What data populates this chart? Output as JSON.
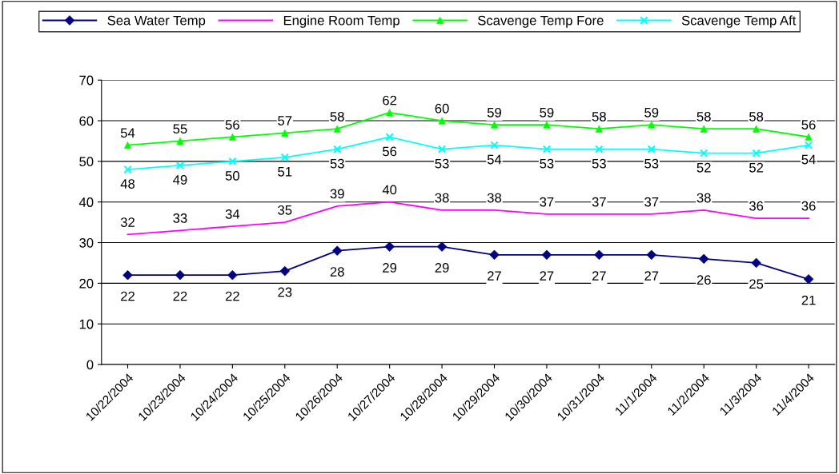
{
  "chart_data": {
    "type": "line",
    "categories": [
      "10/22/2004",
      "10/23/2004",
      "10/24/2004",
      "10/25/2004",
      "10/26/2004",
      "10/27/2004",
      "10/28/2004",
      "10/29/2004",
      "10/30/2004",
      "10/31/2004",
      "11/1/2004",
      "11/2/2004",
      "11/3/2004",
      "11/4/2004"
    ],
    "series": [
      {
        "name": "Sea Water Temp",
        "color": "#000080",
        "marker": "diamond",
        "values": [
          22,
          22,
          22,
          23,
          28,
          29,
          29,
          27,
          27,
          27,
          27,
          26,
          25,
          21
        ]
      },
      {
        "name": "Engine Room Temp",
        "color": "#ff00ff",
        "marker": "none",
        "values": [
          32,
          33,
          34,
          35,
          39,
          40,
          38,
          38,
          37,
          37,
          37,
          38,
          36,
          36
        ]
      },
      {
        "name": "Scavenge Temp Fore",
        "color": "#00ff00",
        "marker": "triangle",
        "values": [
          54,
          55,
          56,
          57,
          58,
          62,
          60,
          59,
          59,
          58,
          59,
          58,
          58,
          56
        ]
      },
      {
        "name": "Scavenge Temp Aft",
        "color": "#00ffff",
        "marker": "cross",
        "values": [
          48,
          49,
          50,
          51,
          53,
          56,
          53,
          54,
          53,
          53,
          53,
          52,
          52,
          54
        ]
      }
    ],
    "ylim": [
      0,
      70
    ],
    "yticks": [
      0,
      10,
      20,
      30,
      40,
      50,
      60,
      70
    ],
    "grid": "y",
    "legend": "top",
    "data_labels": true
  }
}
